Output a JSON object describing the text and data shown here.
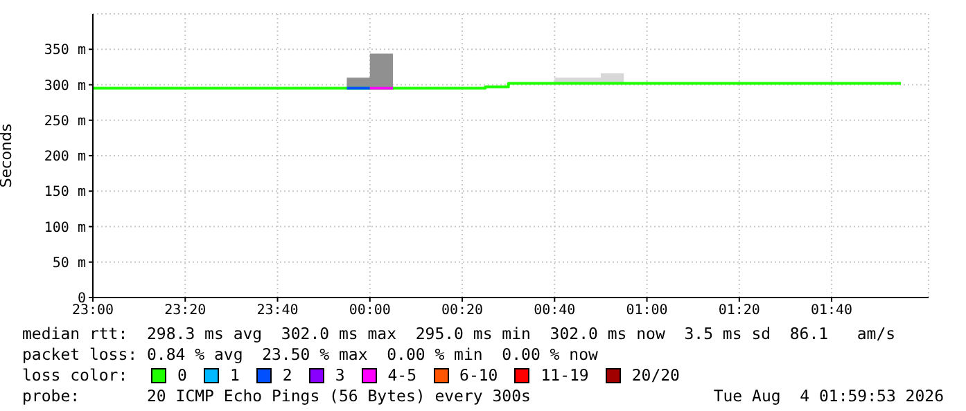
{
  "chart_data": {
    "type": "step",
    "ylabel": "Seconds",
    "xlim": [
      "2026-08-03T23:00",
      "2026-08-04T02:01"
    ],
    "xticks": [
      {
        "value": "2026-08-03T23:00",
        "label": "23:00"
      },
      {
        "value": "2026-08-03T23:20",
        "label": "23:20"
      },
      {
        "value": "2026-08-03T23:40",
        "label": "23:40"
      },
      {
        "value": "2026-08-04T00:00",
        "label": "00:00"
      },
      {
        "value": "2026-08-04T00:20",
        "label": "00:20"
      },
      {
        "value": "2026-08-04T00:40",
        "label": "00:40"
      },
      {
        "value": "2026-08-04T01:00",
        "label": "01:00"
      },
      {
        "value": "2026-08-04T01:20",
        "label": "01:20"
      },
      {
        "value": "2026-08-04T01:40",
        "label": "01:40"
      }
    ],
    "ylim": [
      0,
      400
    ],
    "yticks": [
      0,
      {
        "value": 50,
        "label": "50 m"
      },
      {
        "value": 100,
        "label": "100 m"
      },
      {
        "value": 150,
        "label": "150 m"
      },
      {
        "value": 200,
        "label": "200 m"
      },
      {
        "value": 250,
        "label": "250 m"
      },
      {
        "value": 300,
        "label": "300 m"
      },
      {
        "value": 350,
        "label": "350 m"
      }
    ],
    "grid": true,
    "line_style": "solid",
    "marker": "none",
    "series": [
      {
        "type": "area",
        "color": "#909090",
        "x": [
          "2026-08-03T23:55",
          "2026-08-04T00:00",
          "2026-08-04T00:05"
        ],
        "values": [
          310,
          344,
          344
        ]
      },
      {
        "type": "area",
        "color": "#d8d8d8",
        "x": [
          "2026-08-04T00:40",
          "2026-08-04T00:50",
          "2026-08-04T00:55"
        ],
        "values": [
          310,
          316,
          316
        ]
      },
      {
        "color": "#20ff00",
        "x": [
          "2026-08-03T23:00",
          "2026-08-04T00:25",
          "2026-08-04T00:30",
          "2026-08-04T01:55"
        ],
        "values": [
          295,
          297,
          302,
          302
        ]
      },
      {
        "color": "#0050ff",
        "x": [
          "2026-08-03T23:55",
          "2026-08-04T00:00"
        ],
        "values": [
          295,
          295
        ]
      },
      {
        "color": "#ff00ff",
        "x": [
          "2026-08-04T00:00",
          "2026-08-04T00:05"
        ],
        "values": [
          295,
          295
        ]
      }
    ],
    "annotations": [
      "median rtt:  298.3 ms avg  302.0 ms max  295.0 ms min  302.0 ms now  3.5 ms sd  86.1   am/s",
      "packet loss: 0.84 % avg  23.50 % max  0.00 % min  0.00 % now",
      "loss color:",
      "0",
      "1",
      "2",
      "3",
      "4-5",
      "6-10",
      "11-19",
      "20/20",
      "probe:       20 ICMP Echo Pings (56 Bytes) every 300s",
      "Tue Aug  4 01:59:53 2026"
    ]
  }
}
